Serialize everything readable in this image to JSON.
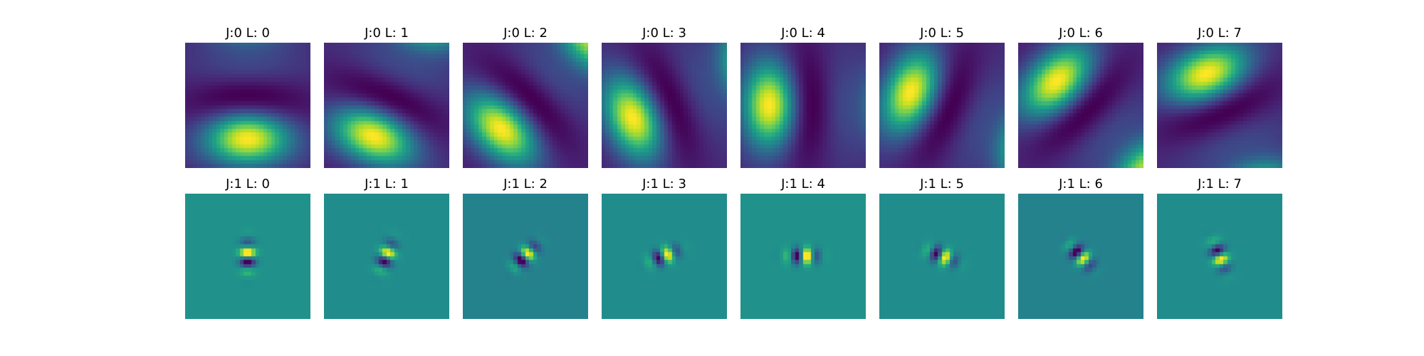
{
  "chart_data": {
    "type": "heatmap",
    "colormap": "viridis",
    "axes": "off",
    "rows": [
      {
        "panels": [
          {
            "title": "J:0 L: 0"
          },
          {
            "title": "J:0 L: 1"
          },
          {
            "title": "J:0 L: 2"
          },
          {
            "title": "J:0 L: 3"
          },
          {
            "title": "J:0 L: 4"
          },
          {
            "title": "J:0 L: 5"
          },
          {
            "title": "J:0 L: 6"
          },
          {
            "title": "J:0 L: 7"
          }
        ]
      },
      {
        "panels": [
          {
            "title": "J:1 L: 0"
          },
          {
            "title": "J:1 L: 1"
          },
          {
            "title": "J:1 L: 2"
          },
          {
            "title": "J:1 L: 3"
          },
          {
            "title": "J:1 L: 4"
          },
          {
            "title": "J:1 L: 5"
          },
          {
            "title": "J:1 L: 6"
          },
          {
            "title": "J:1 L: 7"
          }
        ]
      }
    ]
  }
}
